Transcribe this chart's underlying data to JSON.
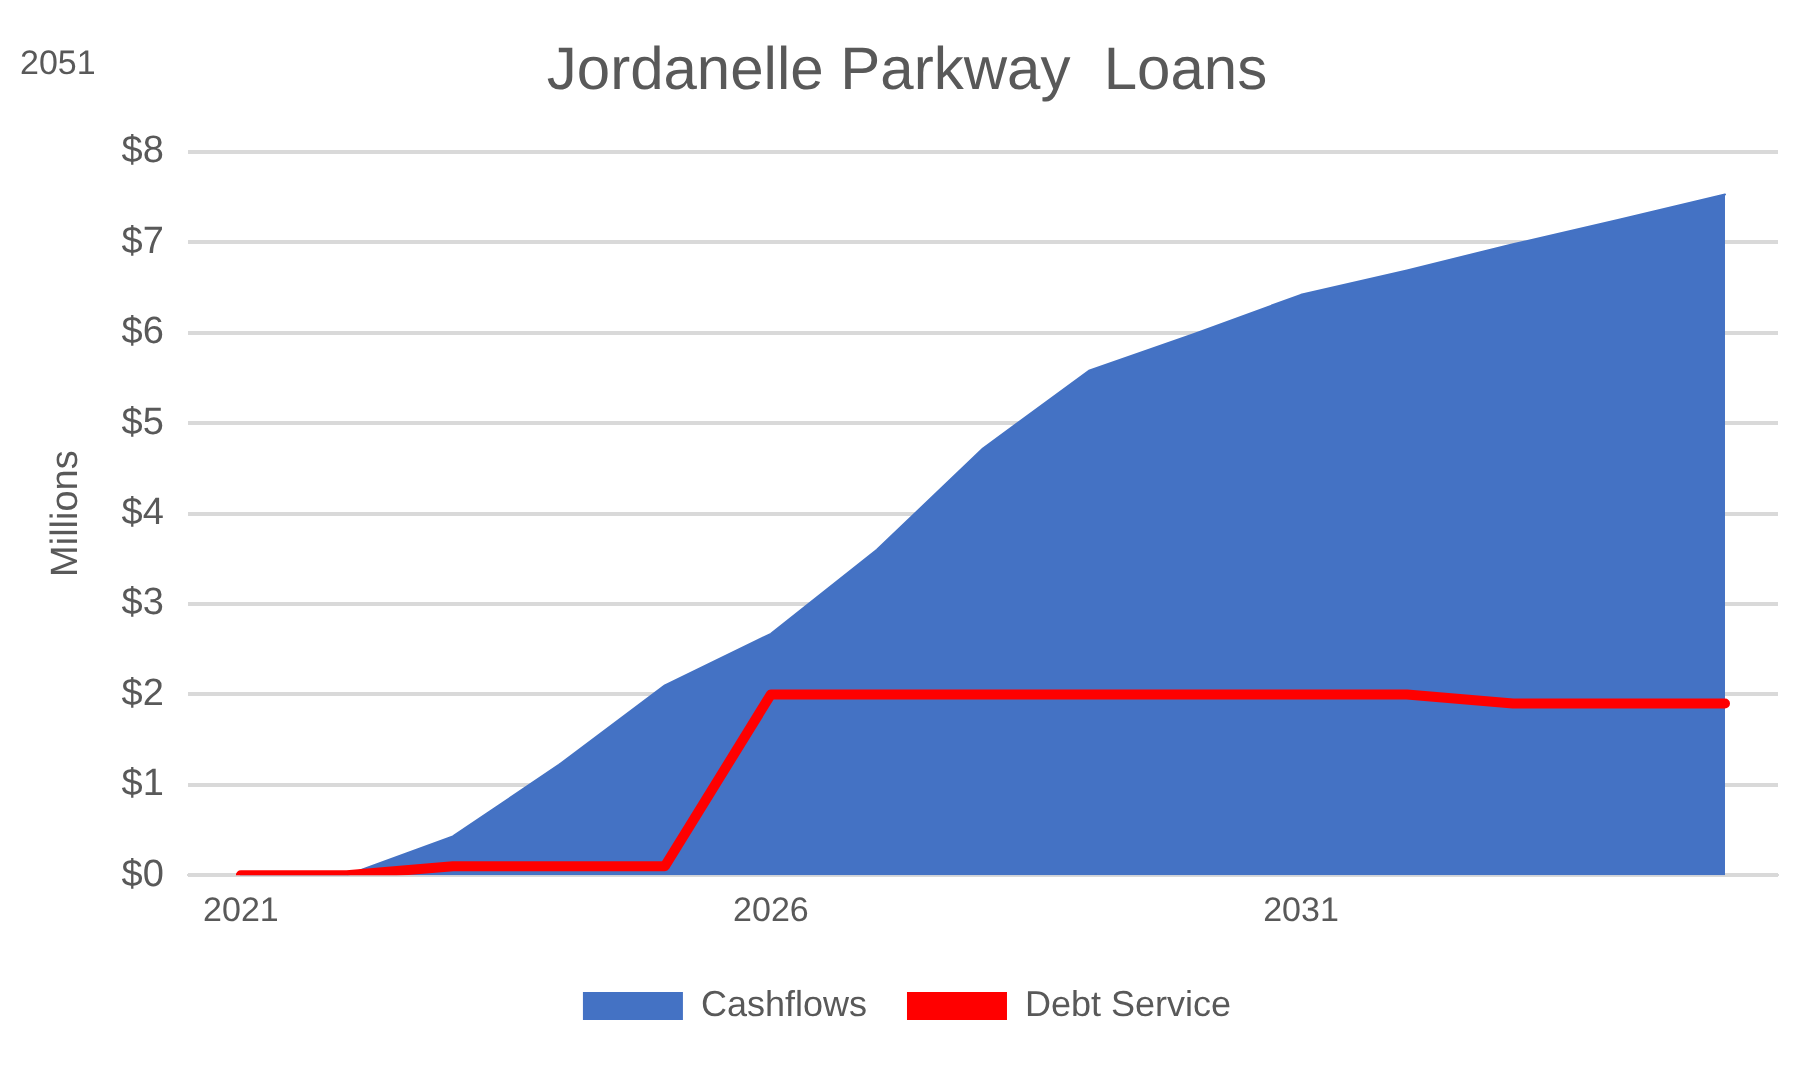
{
  "chart_data": {
    "type": "area",
    "title": "Jordanelle Parkway  Loans",
    "ylabel": "Millions",
    "annotations": [
      "2051"
    ],
    "categories": [
      "2021",
      null,
      null,
      null,
      null,
      "2026",
      null,
      null,
      null,
      null,
      "2031",
      null,
      null,
      null,
      null
    ],
    "series": [
      {
        "name": "Cashflows",
        "color": "#4472c4",
        "values": [
          0,
          0,
          0.43,
          1.22,
          2.1,
          2.67,
          3.6,
          4.72,
          5.58,
          5.99,
          6.42,
          6.69,
          6.98,
          7.25,
          7.53
        ]
      },
      {
        "name": "Debt Service",
        "type": "line",
        "color": "#ff0000",
        "values": [
          0,
          0,
          0.1,
          0.1,
          0.1,
          2.0,
          2.0,
          2.0,
          2.0,
          2.0,
          2.0,
          2.0,
          1.9,
          1.9,
          1.9
        ]
      }
    ],
    "ylim": [
      0,
      8
    ],
    "yticks": [
      {
        "value": 0,
        "label": "$0"
      },
      {
        "value": 1,
        "label": "$1"
      },
      {
        "value": 2,
        "label": "$2"
      },
      {
        "value": 3,
        "label": "$3"
      },
      {
        "value": 4,
        "label": "$4"
      },
      {
        "value": 5,
        "label": "$5"
      },
      {
        "value": 6,
        "label": "$6"
      },
      {
        "value": 7,
        "label": "$7"
      },
      {
        "value": 8,
        "label": "$8"
      }
    ],
    "grid": "y",
    "legend": "bottom",
    "marker": "none",
    "line_style": "solid"
  }
}
